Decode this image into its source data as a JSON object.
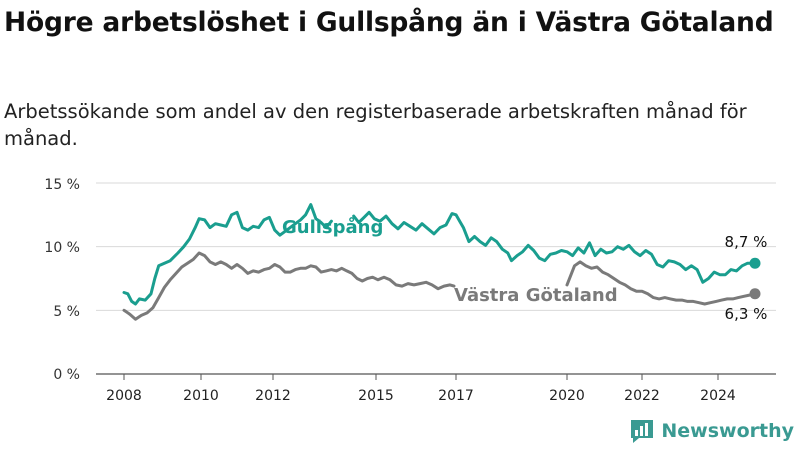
{
  "title": "Högre arbetslöshet i Gullspång än i Västra Götaland",
  "subtitle": "Arbetssökande som andel av den registerbaserade arbetskraften månad för månad.",
  "brand": {
    "name": "Newsworthy",
    "color": "#3a9a92",
    "icon": "bar-chart-logo-icon"
  },
  "colors": {
    "gullspang": "#1a9e8f",
    "vg": "#7a7a7a",
    "grid": "#d9d9d9",
    "axis": "#555555"
  },
  "chart_data": {
    "type": "line",
    "ylim": [
      0,
      15
    ],
    "yticks": [
      "0 %",
      "5 %",
      "10 %",
      "15 %"
    ],
    "xlim": [
      2008,
      2025
    ],
    "xticks": [
      "2008",
      "2010",
      "2012",
      "2015",
      "2017",
      "2020",
      "2022",
      "2024"
    ],
    "series": [
      {
        "name": "Gullspång",
        "points": [
          [
            2008.0,
            6.4
          ],
          [
            2008.1,
            6.3
          ],
          [
            2008.2,
            5.7
          ],
          [
            2008.3,
            5.5
          ],
          [
            2008.4,
            5.9
          ],
          [
            2008.55,
            5.8
          ],
          [
            2008.7,
            6.3
          ],
          [
            2008.8,
            7.5
          ],
          [
            2008.9,
            8.5
          ],
          [
            2009.05,
            8.7
          ],
          [
            2009.2,
            8.9
          ],
          [
            2009.4,
            9.5
          ],
          [
            2009.55,
            10.0
          ],
          [
            2009.7,
            10.6
          ],
          [
            2009.85,
            11.5
          ],
          [
            2009.95,
            12.2
          ],
          [
            2010.1,
            12.1
          ],
          [
            2010.25,
            11.5
          ],
          [
            2010.4,
            11.8
          ],
          [
            2010.55,
            11.7
          ],
          [
            2010.7,
            11.6
          ],
          [
            2010.85,
            12.5
          ],
          [
            2011.0,
            12.7
          ],
          [
            2011.15,
            11.5
          ],
          [
            2011.3,
            11.3
          ],
          [
            2011.45,
            11.6
          ],
          [
            2011.6,
            11.5
          ],
          [
            2011.75,
            12.1
          ],
          [
            2011.9,
            12.3
          ],
          [
            2012.05,
            11.3
          ],
          [
            2012.2,
            10.9
          ],
          [
            2012.35,
            11.2
          ],
          [
            2012.5,
            11.5
          ],
          [
            2012.65,
            11.8
          ],
          [
            2012.8,
            12.1
          ],
          [
            2012.95,
            12.5
          ],
          [
            2013.1,
            13.3
          ],
          [
            2013.25,
            12.2
          ],
          [
            2013.4,
            11.9
          ],
          [
            2013.55,
            11.5
          ],
          [
            2013.7,
            12.0
          ],
          null,
          [
            2014.35,
            12.4
          ],
          [
            2014.5,
            11.9
          ],
          [
            2014.65,
            12.3
          ],
          [
            2014.8,
            12.7
          ],
          [
            2014.95,
            12.2
          ],
          [
            2015.1,
            12.0
          ],
          [
            2015.25,
            12.4
          ],
          [
            2015.4,
            11.8
          ],
          [
            2015.55,
            11.4
          ],
          [
            2015.7,
            11.9
          ],
          [
            2015.85,
            11.6
          ],
          [
            2016.0,
            11.3
          ],
          [
            2016.15,
            11.8
          ],
          [
            2016.3,
            11.4
          ],
          [
            2016.45,
            11.0
          ],
          [
            2016.6,
            11.5
          ],
          [
            2016.75,
            11.7
          ],
          [
            2016.9,
            12.6
          ],
          [
            2017.0,
            12.5
          ],
          [
            2017.1,
            12.0
          ],
          [
            2017.2,
            11.5
          ],
          [
            2017.35,
            10.4
          ],
          [
            2017.5,
            10.8
          ],
          [
            2017.65,
            10.4
          ],
          [
            2017.8,
            10.1
          ],
          [
            2017.95,
            10.7
          ],
          [
            2018.1,
            10.4
          ],
          [
            2018.25,
            9.8
          ],
          [
            2018.4,
            9.5
          ],
          [
            2018.5,
            8.9
          ],
          [
            2018.65,
            9.3
          ],
          [
            2018.8,
            9.6
          ],
          [
            2018.95,
            10.1
          ],
          [
            2019.1,
            9.7
          ],
          [
            2019.25,
            9.1
          ],
          [
            2019.4,
            8.9
          ],
          [
            2019.55,
            9.4
          ],
          [
            2019.7,
            9.5
          ],
          [
            2019.85,
            9.7
          ],
          [
            2020.0,
            9.6
          ],
          [
            2020.15,
            9.3
          ],
          [
            2020.3,
            9.9
          ],
          [
            2020.45,
            9.5
          ],
          [
            2020.6,
            10.3
          ],
          [
            2020.75,
            9.3
          ],
          [
            2020.9,
            9.8
          ],
          [
            2021.05,
            9.5
          ],
          [
            2021.2,
            9.6
          ],
          [
            2021.35,
            10.0
          ],
          [
            2021.5,
            9.8
          ],
          [
            2021.65,
            10.1
          ],
          [
            2021.8,
            9.6
          ],
          [
            2021.95,
            9.3
          ],
          [
            2022.1,
            9.7
          ],
          [
            2022.25,
            9.4
          ],
          [
            2022.4,
            8.6
          ],
          [
            2022.55,
            8.4
          ],
          [
            2022.7,
            8.9
          ],
          [
            2022.85,
            8.8
          ],
          [
            2023.0,
            8.6
          ],
          [
            2023.15,
            8.2
          ],
          [
            2023.3,
            8.5
          ],
          [
            2023.45,
            8.2
          ],
          [
            2023.6,
            7.2
          ],
          [
            2023.75,
            7.5
          ],
          [
            2023.9,
            8.0
          ],
          [
            2024.05,
            7.8
          ],
          [
            2024.2,
            7.8
          ],
          [
            2024.35,
            8.2
          ],
          [
            2024.5,
            8.1
          ],
          [
            2024.65,
            8.5
          ],
          [
            2024.8,
            8.7
          ],
          [
            2025.0,
            8.7
          ]
        ]
      },
      {
        "name": "Västra Götaland",
        "points": [
          [
            2008.0,
            5.0
          ],
          [
            2008.15,
            4.7
          ],
          [
            2008.3,
            4.3
          ],
          [
            2008.45,
            4.6
          ],
          [
            2008.6,
            4.8
          ],
          [
            2008.75,
            5.2
          ],
          [
            2008.9,
            6.0
          ],
          [
            2009.05,
            6.8
          ],
          [
            2009.2,
            7.4
          ],
          [
            2009.35,
            7.9
          ],
          [
            2009.5,
            8.4
          ],
          [
            2009.65,
            8.7
          ],
          [
            2009.8,
            9.0
          ],
          [
            2009.95,
            9.5
          ],
          [
            2010.1,
            9.3
          ],
          [
            2010.25,
            8.8
          ],
          [
            2010.4,
            8.6
          ],
          [
            2010.55,
            8.8
          ],
          [
            2010.7,
            8.6
          ],
          [
            2010.85,
            8.3
          ],
          [
            2011.0,
            8.6
          ],
          [
            2011.15,
            8.3
          ],
          [
            2011.3,
            7.9
          ],
          [
            2011.45,
            8.1
          ],
          [
            2011.6,
            8.0
          ],
          [
            2011.75,
            8.2
          ],
          [
            2011.9,
            8.3
          ],
          [
            2012.05,
            8.6
          ],
          [
            2012.2,
            8.4
          ],
          [
            2012.35,
            8.0
          ],
          [
            2012.5,
            8.0
          ],
          [
            2012.65,
            8.2
          ],
          [
            2012.8,
            8.3
          ],
          [
            2012.95,
            8.3
          ],
          [
            2013.1,
            8.5
          ],
          [
            2013.25,
            8.4
          ],
          [
            2013.4,
            8.0
          ],
          [
            2013.55,
            8.1
          ],
          [
            2013.7,
            8.2
          ],
          [
            2013.85,
            8.1
          ],
          [
            2014.0,
            8.3
          ],
          [
            2014.15,
            8.1
          ],
          [
            2014.3,
            7.9
          ],
          [
            2014.45,
            7.5
          ],
          [
            2014.6,
            7.3
          ],
          [
            2014.75,
            7.5
          ],
          [
            2014.9,
            7.6
          ],
          [
            2015.05,
            7.4
          ],
          [
            2015.2,
            7.6
          ],
          [
            2015.35,
            7.4
          ],
          [
            2015.5,
            7.0
          ],
          [
            2015.65,
            6.9
          ],
          [
            2015.8,
            7.1
          ],
          [
            2015.95,
            7.0
          ],
          [
            2016.1,
            7.1
          ],
          [
            2016.25,
            7.2
          ],
          [
            2016.4,
            7.0
          ],
          [
            2016.55,
            6.7
          ],
          [
            2016.7,
            6.9
          ],
          [
            2016.85,
            7.0
          ],
          [
            2016.95,
            6.9
          ],
          null,
          [
            2020.0,
            7.0
          ],
          [
            2020.2,
            8.5
          ],
          [
            2020.35,
            8.8
          ],
          [
            2020.5,
            8.5
          ],
          [
            2020.65,
            8.3
          ],
          [
            2020.8,
            8.4
          ],
          [
            2020.95,
            8.0
          ],
          [
            2021.1,
            7.8
          ],
          [
            2021.25,
            7.5
          ],
          [
            2021.4,
            7.2
          ],
          [
            2021.55,
            7.0
          ],
          [
            2021.7,
            6.7
          ],
          [
            2021.85,
            6.5
          ],
          [
            2022.0,
            6.5
          ],
          [
            2022.15,
            6.3
          ],
          [
            2022.3,
            6.0
          ],
          [
            2022.45,
            5.9
          ],
          [
            2022.6,
            6.0
          ],
          [
            2022.75,
            5.9
          ],
          [
            2022.9,
            5.8
          ],
          [
            2023.05,
            5.8
          ],
          [
            2023.2,
            5.7
          ],
          [
            2023.35,
            5.7
          ],
          [
            2023.5,
            5.6
          ],
          [
            2023.65,
            5.5
          ],
          [
            2023.8,
            5.6
          ],
          [
            2023.95,
            5.7
          ],
          [
            2024.1,
            5.8
          ],
          [
            2024.25,
            5.9
          ],
          [
            2024.4,
            5.9
          ],
          [
            2024.55,
            6.0
          ],
          [
            2024.7,
            6.1
          ],
          [
            2024.85,
            6.2
          ],
          [
            2025.0,
            6.3
          ]
        ]
      }
    ],
    "end_labels": [
      "8,7 %",
      "6,3 %"
    ],
    "grid": true
  }
}
